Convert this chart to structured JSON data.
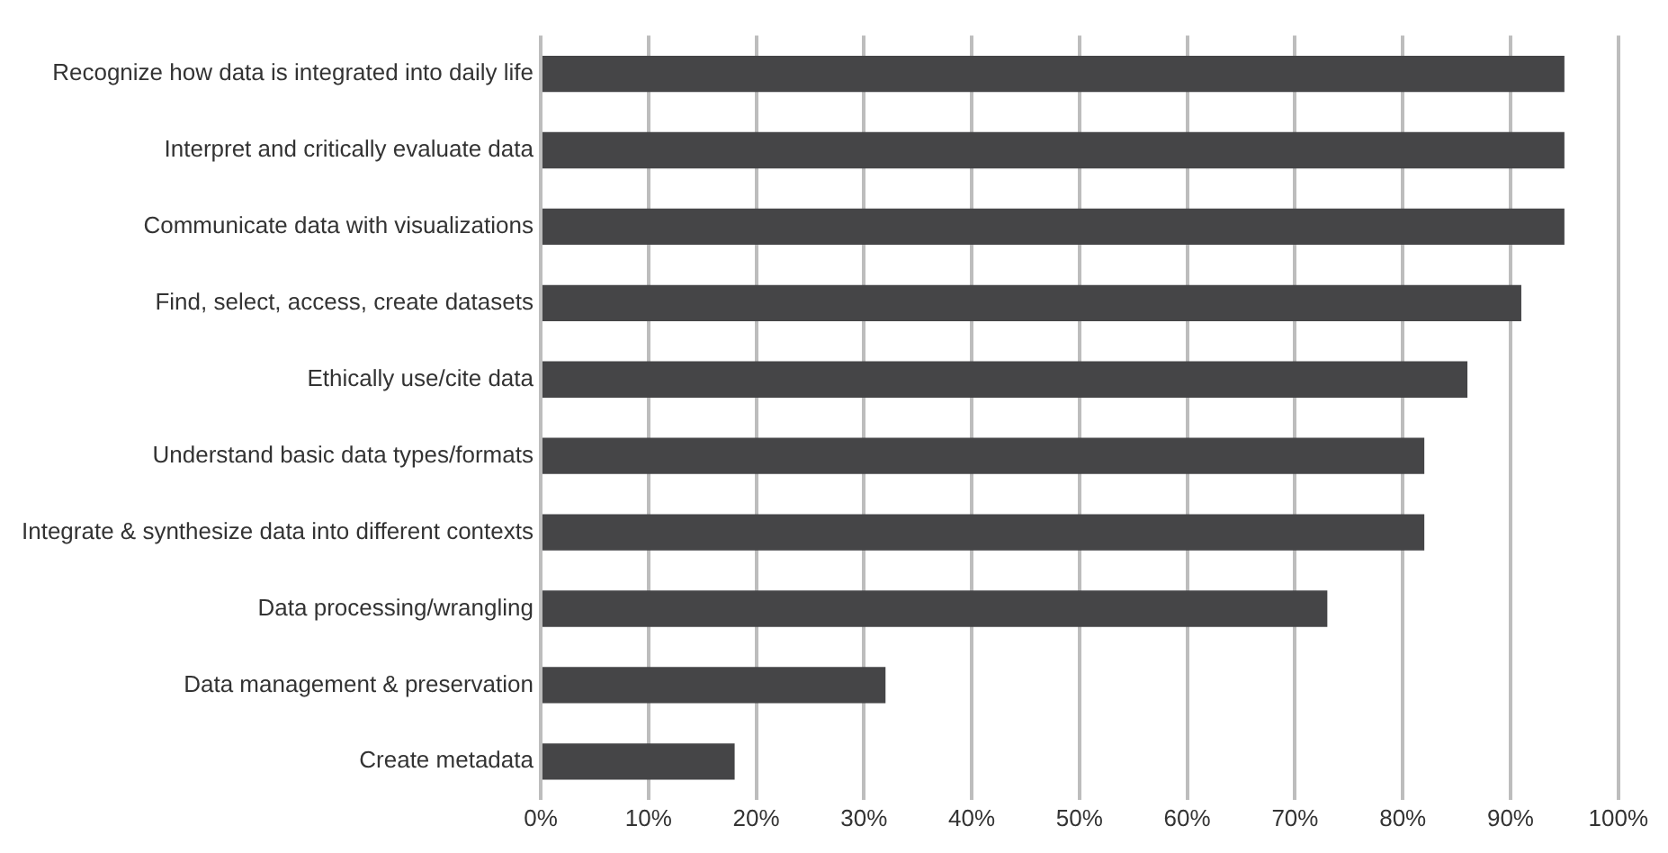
{
  "chart_data": {
    "type": "bar",
    "orientation": "horizontal",
    "categories": [
      "Recognize how data is integrated into daily life",
      "Interpret and critically evaluate data",
      "Communicate data with visualizations",
      "Find, select, access, create datasets",
      "Ethically use/cite data",
      "Understand basic data types/formats",
      "Integrate & synthesize data into different contexts",
      "Data processing/wrangling",
      "Data management & preservation",
      "Create metadata"
    ],
    "values": [
      95,
      95,
      95,
      91,
      86,
      82,
      82,
      73,
      32,
      18
    ],
    "color": "#454547",
    "xlim": [
      0,
      100
    ],
    "xticks": [
      {
        "value": 0,
        "label": "0%"
      },
      {
        "value": 10,
        "label": "10%"
      },
      {
        "value": 20,
        "label": "20%"
      },
      {
        "value": 30,
        "label": "30%"
      },
      {
        "value": 40,
        "label": "40%"
      },
      {
        "value": 50,
        "label": "50%"
      },
      {
        "value": 60,
        "label": "60%"
      },
      {
        "value": 70,
        "label": "70%"
      },
      {
        "value": 80,
        "label": "80%"
      },
      {
        "value": 90,
        "label": "90%"
      },
      {
        "value": 100,
        "label": "100%"
      }
    ],
    "grid": "x",
    "legend": false
  }
}
